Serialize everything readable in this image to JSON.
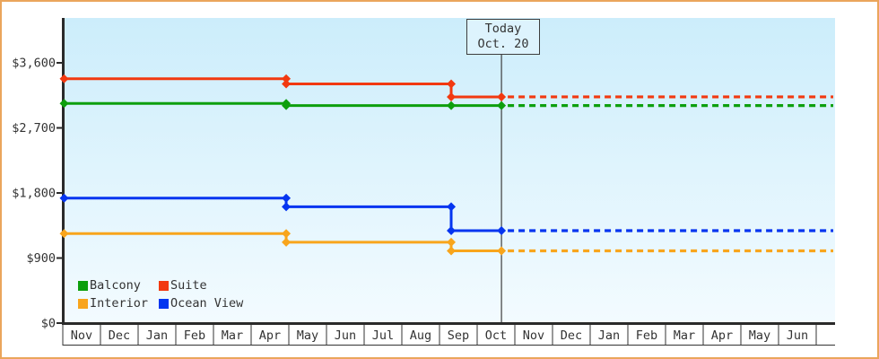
{
  "frame": {
    "border_color": "#eaa55c",
    "background_color": "#ffffff",
    "plot_gradient_top": "#ccedfb",
    "plot_gradient_bottom": "#f3fbff",
    "axis_color": "#2a2a2a",
    "grid_line_color": "#333333",
    "text_color": "#333333"
  },
  "today_marker": {
    "line1": "Today",
    "line2": "Oct. 20",
    "month_index": 11.645,
    "line_color": "#3d3d3d"
  },
  "chart_data": {
    "type": "line",
    "title": "",
    "xlabel": "",
    "ylabel": "",
    "ylim": [
      0,
      4220
    ],
    "grid": "vertical-month-cells",
    "legend_position": "bottom-left",
    "y_axis": {
      "ticks": [
        {
          "value": 0,
          "label": "$0"
        },
        {
          "value": 900,
          "label": "$900"
        },
        {
          "value": 1800,
          "label": "$1,800"
        },
        {
          "value": 2700,
          "label": "$2,700"
        },
        {
          "value": 3600,
          "label": "$3,600"
        }
      ]
    },
    "x_axis": {
      "months": [
        "Nov",
        "Dec",
        "Jan",
        "Feb",
        "Mar",
        "Apr",
        "May",
        "Jun",
        "Jul",
        "Aug",
        "Sep",
        "Oct",
        "Nov",
        "Dec",
        "Jan",
        "Feb",
        "Mar",
        "Apr",
        "May",
        "Jun"
      ],
      "has_trailing_empty_cell": true
    },
    "series": [
      {
        "name": "Interior",
        "color": "#f8a51c",
        "points": [
          {
            "month_index": 0.0,
            "approx_date": "Nov 1",
            "value": 1239
          },
          {
            "month_index": 5.93,
            "approx_date": "Apr 29",
            "value": 1119
          },
          {
            "month_index": 10.31,
            "approx_date": "Sep 10",
            "value": 999
          },
          {
            "month_index": 11.645,
            "approx_date": "Oct 20",
            "value": 999
          }
        ],
        "projected_value": 999
      },
      {
        "name": "Ocean View",
        "color": "#0535f0",
        "points": [
          {
            "month_index": 0.0,
            "approx_date": "Nov 1",
            "value": 1729
          },
          {
            "month_index": 5.93,
            "approx_date": "Apr 29",
            "value": 1609
          },
          {
            "month_index": 10.31,
            "approx_date": "Sep 10",
            "value": 1279
          },
          {
            "month_index": 11.645,
            "approx_date": "Oct 20",
            "value": 1279
          }
        ],
        "projected_value": 1279
      },
      {
        "name": "Balcony",
        "color": "#0d9f0d",
        "points": [
          {
            "month_index": 0.0,
            "approx_date": "Nov 1",
            "value": 3039
          },
          {
            "month_index": 5.93,
            "approx_date": "Apr 29",
            "value": 3009
          },
          {
            "month_index": 10.31,
            "approx_date": "Sep 10",
            "value": 3009
          },
          {
            "month_index": 11.645,
            "approx_date": "Oct 20",
            "value": 3009
          }
        ],
        "projected_value": 3009
      },
      {
        "name": "Suite",
        "color": "#f23910",
        "points": [
          {
            "month_index": 0.0,
            "approx_date": "Nov 1",
            "value": 3379
          },
          {
            "month_index": 5.93,
            "approx_date": "Apr 29",
            "value": 3309
          },
          {
            "month_index": 10.31,
            "approx_date": "Sep 10",
            "value": 3129
          },
          {
            "month_index": 11.645,
            "approx_date": "Oct 20",
            "value": 3129
          }
        ],
        "projected_value": 3129
      }
    ],
    "legend": [
      {
        "label": "Balcony",
        "color": "#0d9f0d"
      },
      {
        "label": "Suite",
        "color": "#f23910"
      },
      {
        "label": "Interior",
        "color": "#f8a51c"
      },
      {
        "label": "Ocean View",
        "color": "#0535f0"
      }
    ]
  }
}
